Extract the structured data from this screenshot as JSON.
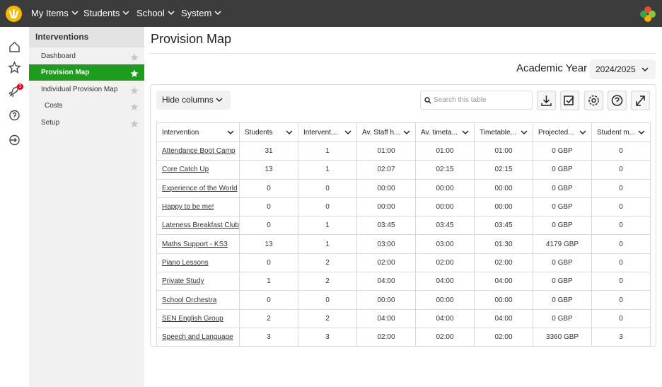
{
  "top_nav": {
    "items": [
      "My Items",
      "Students",
      "School",
      "System"
    ]
  },
  "rail": {
    "badge": "3"
  },
  "sidebar": {
    "title": "Interventions",
    "items": [
      "Dashboard",
      "Provision Map",
      "Individual Provision Map",
      "Costs",
      "Setup"
    ]
  },
  "page": {
    "title": "Provision Map",
    "year_label": "Academic Year",
    "year_value": "2024/2025"
  },
  "toolbar": {
    "hide_columns": "Hide columns",
    "search_placeholder": "Search this table"
  },
  "table": {
    "headers": [
      "Intervention",
      "Students",
      "Intervent...",
      "Av. Staff h...",
      "Av. timeta...",
      "Timetable...",
      "Projected...",
      "Student m..."
    ],
    "rows": [
      [
        "Attendance Boot Camp",
        "31",
        "1",
        "01:00",
        "01:00",
        "01:00",
        "0 GBP",
        "0"
      ],
      [
        "Core Catch Up",
        "13",
        "1",
        "02:07",
        "02:15",
        "02:15",
        "0 GBP",
        "0"
      ],
      [
        "Experience of the World",
        "0",
        "0",
        "00:00",
        "00:00",
        "00:00",
        "0 GBP",
        "0"
      ],
      [
        "Happy to be me!",
        "0",
        "0",
        "00:00",
        "00:00",
        "00:00",
        "0 GBP",
        "0"
      ],
      [
        "Lateness Breakfast Club",
        "0",
        "1",
        "03:45",
        "03:45",
        "03:45",
        "0 GBP",
        "0"
      ],
      [
        "Maths Support - KS3",
        "13",
        "1",
        "03:00",
        "03:00",
        "01:30",
        "4179 GBP",
        "0"
      ],
      [
        "Piano Lessons",
        "0",
        "2",
        "02:00",
        "02:00",
        "02:00",
        "0 GBP",
        "0"
      ],
      [
        "Private Study",
        "1",
        "2",
        "04:00",
        "04:00",
        "04:00",
        "0 GBP",
        "0"
      ],
      [
        "School Orchestra",
        "0",
        "0",
        "00:00",
        "00:00",
        "00:00",
        "0 GBP",
        "0"
      ],
      [
        "SEN English Group",
        "2",
        "2",
        "04:00",
        "04:00",
        "04:00",
        "0 GBP",
        "0"
      ],
      [
        "Speech and Language",
        "3",
        "3",
        "02:00",
        "02:00",
        "02:00",
        "3360 GBP",
        "3"
      ]
    ]
  }
}
